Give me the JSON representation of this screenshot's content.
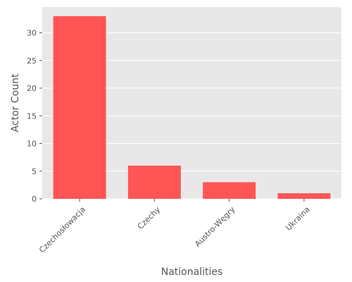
{
  "chart_data": {
    "type": "bar",
    "title": "",
    "xlabel": "Nationalities",
    "ylabel": "Actor Count",
    "categories": [
      "Czechosłowacja",
      "Czechy",
      "Austro-Węgry",
      "Ukraina"
    ],
    "values": [
      33,
      6,
      3,
      1
    ],
    "ylim": [
      0,
      34.65
    ],
    "yticks": [
      0,
      5,
      10,
      15,
      20,
      25,
      30
    ],
    "grid": true,
    "legend": "none",
    "bar_color": "#ff5555",
    "background_color": "#e8e8e8",
    "grid_color": "#ffffff",
    "text_color": "#555555"
  }
}
